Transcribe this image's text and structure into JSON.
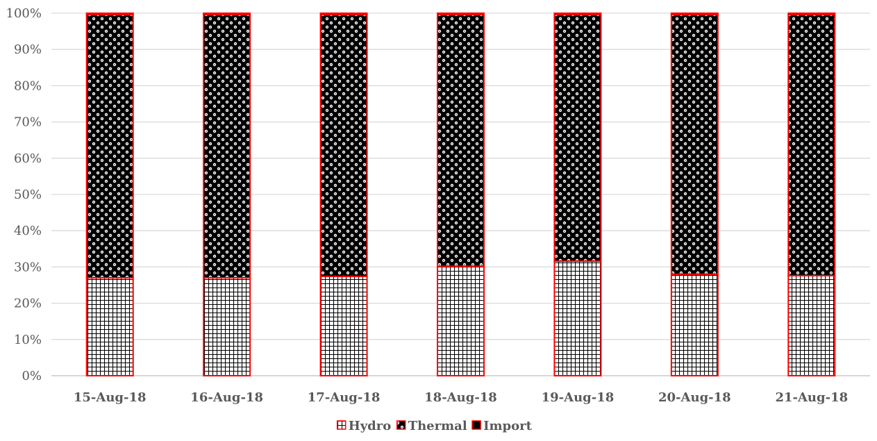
{
  "chart_data": {
    "type": "bar",
    "stacked": "percent",
    "categories": [
      "15-Aug-18",
      "16-Aug-18",
      "17-Aug-18",
      "18-Aug-18",
      "19-Aug-18",
      "20-Aug-18",
      "21-Aug-18"
    ],
    "series": [
      {
        "name": "Hydro",
        "pattern": "grid",
        "values": [
          27.0,
          27.0,
          27.4,
          30.2,
          31.6,
          28.0,
          27.6
        ]
      },
      {
        "name": "Thermal",
        "pattern": "checker-dots",
        "values": [
          72.6,
          72.6,
          72.2,
          69.4,
          68.0,
          71.6,
          72.0
        ]
      },
      {
        "name": "Import",
        "pattern": "solid",
        "values": [
          0.4,
          0.4,
          0.4,
          0.4,
          0.4,
          0.4,
          0.4
        ]
      }
    ],
    "y_ticks": [
      "0%",
      "10%",
      "20%",
      "30%",
      "40%",
      "50%",
      "60%",
      "70%",
      "80%",
      "90%",
      "100%"
    ],
    "ylim": [
      0,
      100
    ],
    "grid": true,
    "legend_position": "bottom",
    "colors": {
      "bar_outline": "#ff0000",
      "gridline": "#d9d9d9",
      "text": "#595959"
    }
  }
}
